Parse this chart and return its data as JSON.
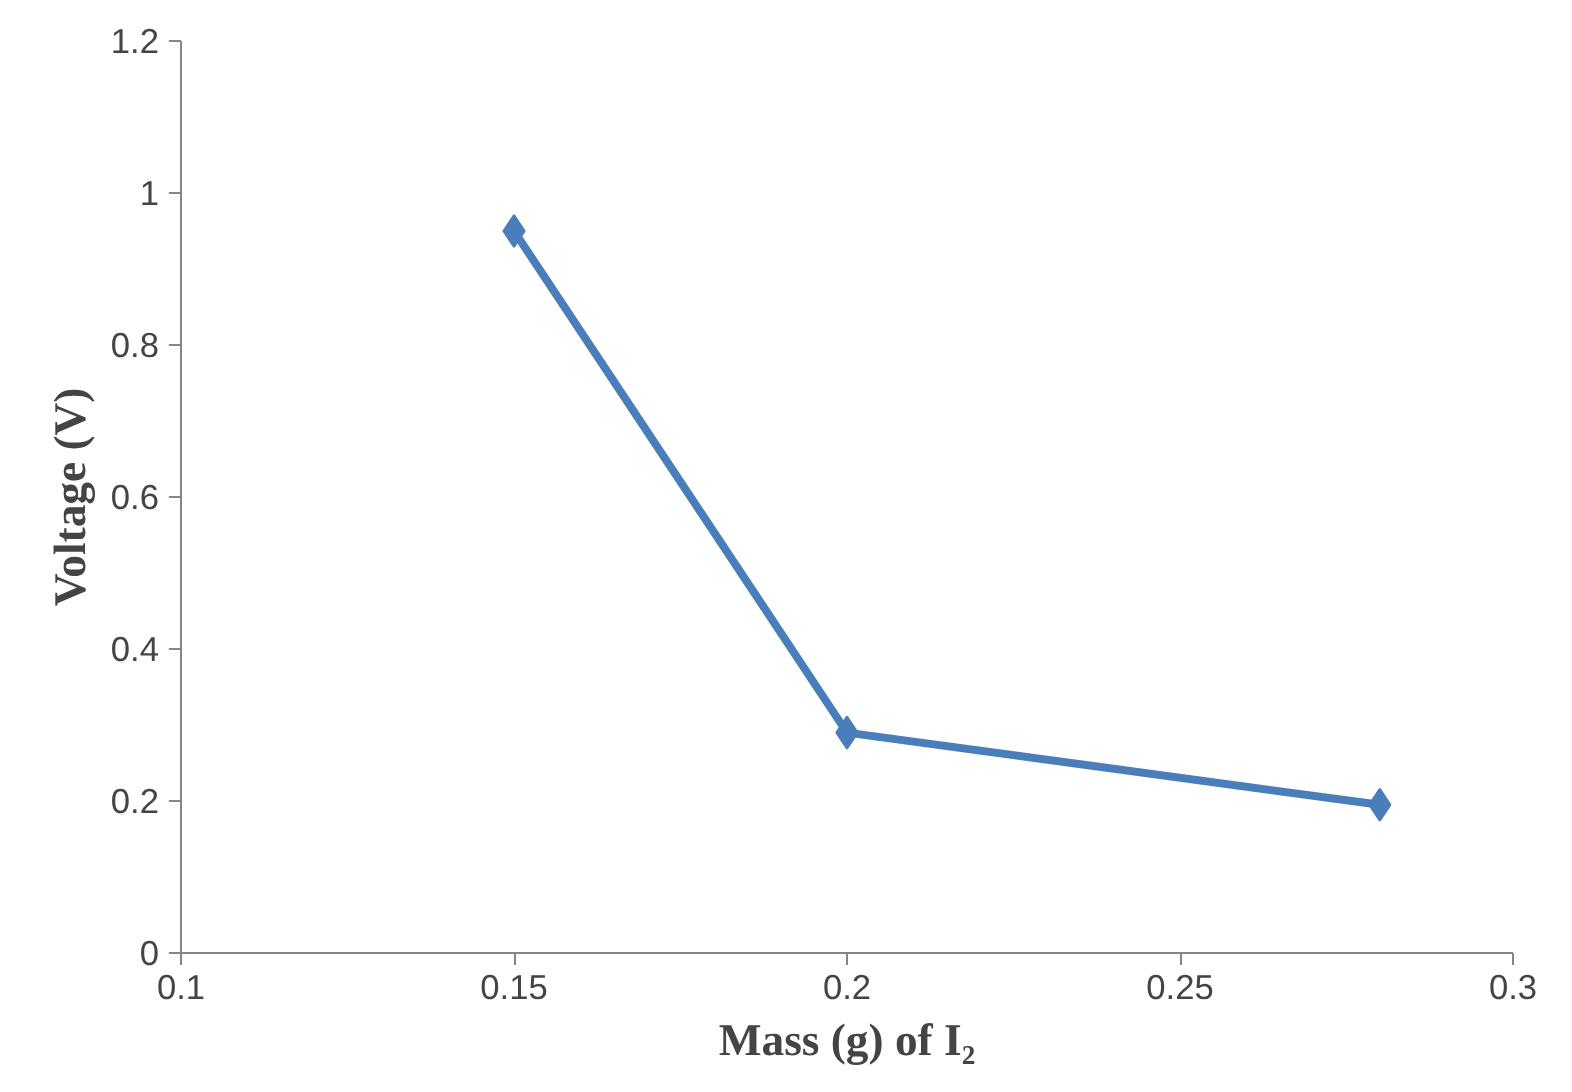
{
  "chart_data": {
    "type": "line",
    "xlabel": "Mass (g) of I₂",
    "ylabel": "Voltage (V)",
    "x": [
      0.15,
      0.2,
      0.28
    ],
    "series": [
      {
        "color": "#4a7ebb",
        "values": [
          0.95,
          0.29,
          0.195
        ]
      }
    ],
    "xlim": [
      0.1,
      0.3
    ],
    "xticks": [
      0.1,
      0.15,
      0.2,
      0.25,
      0.3
    ],
    "ylim": [
      0,
      1.2
    ],
    "yticks": [
      0,
      0.2,
      0.4,
      0.6,
      0.8,
      1,
      1.2
    ],
    "grid": false,
    "marker": "diamond",
    "line_style": "solid"
  }
}
